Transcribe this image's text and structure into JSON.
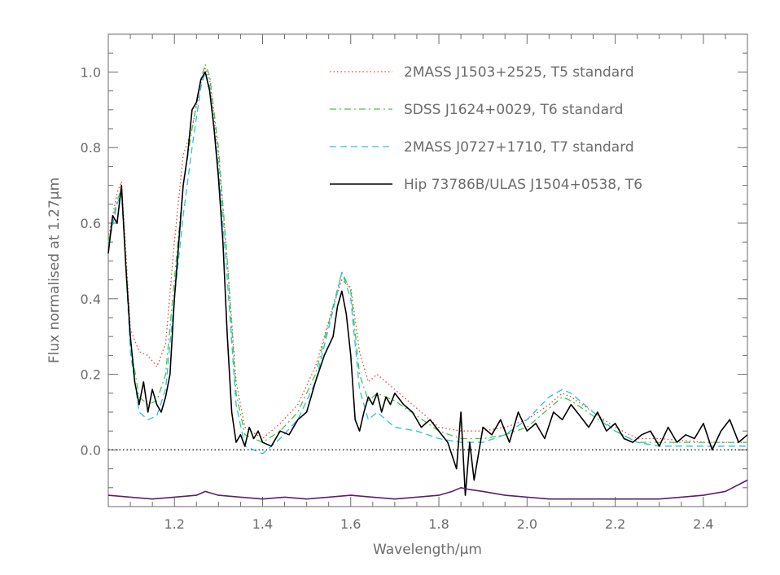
{
  "chart_data": {
    "type": "line",
    "xlabel": "Wavelength/μm",
    "ylabel": "Flux normalised at 1.27μm",
    "xlim": [
      1.05,
      2.5
    ],
    "ylim": [
      -0.15,
      1.1
    ],
    "x_ticks": [
      1.2,
      1.4,
      1.6,
      1.8,
      2.0,
      2.2,
      2.4
    ],
    "x_tick_labels": [
      "1.2",
      "1.4",
      "1.6",
      "1.8",
      "2.0",
      "2.2",
      "2.4"
    ],
    "y_ticks": [
      0.0,
      0.2,
      0.4,
      0.6,
      0.8,
      1.0
    ],
    "y_tick_labels": [
      "0.0",
      "0.2",
      "0.4",
      "0.6",
      "0.8",
      "1.0"
    ],
    "zero_line": 0.0,
    "legend_position": "top-right",
    "series": [
      {
        "name": "2MASS J1503+2525, T5 standard",
        "color": "#e8413a",
        "style": "dotted",
        "x": [
          1.05,
          1.07,
          1.08,
          1.09,
          1.1,
          1.12,
          1.14,
          1.16,
          1.18,
          1.2,
          1.22,
          1.24,
          1.26,
          1.27,
          1.28,
          1.3,
          1.32,
          1.34,
          1.36,
          1.4,
          1.44,
          1.48,
          1.52,
          1.56,
          1.58,
          1.6,
          1.62,
          1.64,
          1.66,
          1.7,
          1.75,
          1.8,
          1.85,
          1.9,
          1.95,
          2.0,
          2.05,
          2.08,
          2.1,
          2.15,
          2.2,
          2.25,
          2.3,
          2.4,
          2.5
        ],
        "y": [
          0.56,
          0.68,
          0.71,
          0.52,
          0.32,
          0.26,
          0.25,
          0.22,
          0.28,
          0.55,
          0.78,
          0.85,
          0.97,
          1.01,
          0.98,
          0.78,
          0.5,
          0.18,
          0.06,
          0.03,
          0.07,
          0.12,
          0.22,
          0.38,
          0.45,
          0.43,
          0.26,
          0.18,
          0.2,
          0.16,
          0.11,
          0.06,
          0.05,
          0.05,
          0.06,
          0.08,
          0.12,
          0.15,
          0.14,
          0.1,
          0.06,
          0.03,
          0.03,
          0.02,
          0.02
        ]
      },
      {
        "name": "SDSS J1624+0029, T6 standard",
        "color": "#3ec84a",
        "style": "dashdot",
        "x": [
          1.05,
          1.07,
          1.08,
          1.09,
          1.1,
          1.12,
          1.14,
          1.16,
          1.18,
          1.2,
          1.22,
          1.24,
          1.26,
          1.27,
          1.28,
          1.3,
          1.32,
          1.34,
          1.36,
          1.4,
          1.44,
          1.48,
          1.52,
          1.56,
          1.58,
          1.6,
          1.62,
          1.64,
          1.66,
          1.7,
          1.75,
          1.8,
          1.85,
          1.9,
          1.95,
          2.0,
          2.05,
          2.08,
          2.1,
          2.15,
          2.2,
          2.25,
          2.3,
          2.4,
          2.5
        ],
        "y": [
          0.55,
          0.66,
          0.69,
          0.5,
          0.28,
          0.14,
          0.12,
          0.13,
          0.2,
          0.45,
          0.7,
          0.85,
          0.98,
          1.02,
          0.99,
          0.8,
          0.5,
          0.15,
          0.04,
          0.02,
          0.05,
          0.1,
          0.2,
          0.38,
          0.47,
          0.42,
          0.2,
          0.13,
          0.15,
          0.13,
          0.09,
          0.05,
          0.03,
          0.03,
          0.04,
          0.06,
          0.11,
          0.14,
          0.13,
          0.09,
          0.05,
          0.02,
          0.02,
          0.02,
          0.02
        ]
      },
      {
        "name": "2MASS J0727+1710, T7 standard",
        "color": "#27c0e0",
        "style": "dashed",
        "x": [
          1.05,
          1.07,
          1.08,
          1.09,
          1.1,
          1.12,
          1.14,
          1.16,
          1.18,
          1.2,
          1.22,
          1.24,
          1.26,
          1.27,
          1.28,
          1.3,
          1.32,
          1.34,
          1.36,
          1.4,
          1.44,
          1.48,
          1.52,
          1.56,
          1.58,
          1.6,
          1.62,
          1.64,
          1.66,
          1.7,
          1.75,
          1.8,
          1.85,
          1.9,
          1.95,
          2.0,
          2.05,
          2.08,
          2.1,
          2.15,
          2.2,
          2.25,
          2.3,
          2.4,
          2.5
        ],
        "y": [
          0.54,
          0.65,
          0.68,
          0.48,
          0.26,
          0.1,
          0.08,
          0.09,
          0.16,
          0.4,
          0.62,
          0.8,
          0.96,
          1.0,
          0.96,
          0.75,
          0.45,
          0.12,
          0.01,
          -0.01,
          0.03,
          0.08,
          0.18,
          0.37,
          0.47,
          0.4,
          0.16,
          0.08,
          0.1,
          0.06,
          0.05,
          0.03,
          0.02,
          0.02,
          0.04,
          0.08,
          0.14,
          0.16,
          0.15,
          0.1,
          0.05,
          0.02,
          0.01,
          0.01,
          0.01
        ]
      },
      {
        "name": "Hip 73786B/ULAS J1504+0538, T6",
        "color": "#000000",
        "style": "solid",
        "x": [
          1.05,
          1.06,
          1.07,
          1.08,
          1.09,
          1.1,
          1.11,
          1.12,
          1.13,
          1.14,
          1.15,
          1.16,
          1.17,
          1.18,
          1.19,
          1.2,
          1.21,
          1.22,
          1.23,
          1.24,
          1.25,
          1.26,
          1.27,
          1.28,
          1.29,
          1.3,
          1.31,
          1.32,
          1.33,
          1.34,
          1.35,
          1.36,
          1.37,
          1.38,
          1.39,
          1.4,
          1.42,
          1.44,
          1.46,
          1.48,
          1.5,
          1.52,
          1.54,
          1.56,
          1.57,
          1.58,
          1.59,
          1.6,
          1.61,
          1.62,
          1.63,
          1.64,
          1.65,
          1.66,
          1.67,
          1.68,
          1.69,
          1.7,
          1.72,
          1.74,
          1.76,
          1.78,
          1.8,
          1.82,
          1.84,
          1.85,
          1.86,
          1.87,
          1.88,
          1.9,
          1.92,
          1.94,
          1.96,
          1.98,
          2.0,
          2.02,
          2.04,
          2.06,
          2.08,
          2.1,
          2.12,
          2.14,
          2.16,
          2.18,
          2.2,
          2.22,
          2.24,
          2.26,
          2.28,
          2.3,
          2.32,
          2.34,
          2.36,
          2.38,
          2.4,
          2.42,
          2.44,
          2.46,
          2.48,
          2.5
        ],
        "y": [
          0.52,
          0.62,
          0.6,
          0.7,
          0.48,
          0.3,
          0.18,
          0.12,
          0.18,
          0.1,
          0.16,
          0.12,
          0.1,
          0.14,
          0.2,
          0.4,
          0.55,
          0.7,
          0.78,
          0.9,
          0.92,
          0.98,
          1.0,
          0.95,
          0.85,
          0.72,
          0.55,
          0.3,
          0.1,
          0.02,
          0.04,
          0.01,
          0.06,
          0.03,
          0.05,
          0.02,
          0.01,
          0.05,
          0.04,
          0.08,
          0.1,
          0.18,
          0.25,
          0.3,
          0.38,
          0.42,
          0.36,
          0.25,
          0.08,
          0.05,
          0.1,
          0.14,
          0.12,
          0.15,
          0.1,
          0.14,
          0.12,
          0.15,
          0.12,
          0.1,
          0.06,
          0.08,
          0.05,
          0.02,
          -0.05,
          0.1,
          -0.12,
          0.02,
          -0.08,
          0.06,
          0.04,
          0.08,
          0.02,
          0.1,
          0.05,
          0.07,
          0.03,
          0.1,
          0.08,
          0.12,
          0.09,
          0.06,
          0.1,
          0.05,
          0.07,
          0.03,
          0.02,
          0.04,
          0.05,
          0.01,
          0.06,
          0.02,
          0.04,
          0.03,
          0.07,
          0.0,
          0.05,
          0.08,
          0.02,
          0.04
        ]
      },
      {
        "name": "",
        "color": "#5b1f6b",
        "style": "solid",
        "x": [
          1.05,
          1.1,
          1.15,
          1.2,
          1.25,
          1.27,
          1.3,
          1.35,
          1.4,
          1.45,
          1.5,
          1.55,
          1.6,
          1.65,
          1.7,
          1.75,
          1.8,
          1.83,
          1.85,
          1.87,
          1.9,
          1.95,
          2.0,
          2.05,
          2.1,
          2.15,
          2.2,
          2.25,
          2.3,
          2.35,
          2.4,
          2.45,
          2.5
        ],
        "y": [
          -0.12,
          -0.125,
          -0.13,
          -0.125,
          -0.12,
          -0.11,
          -0.12,
          -0.125,
          -0.13,
          -0.125,
          -0.13,
          -0.125,
          -0.12,
          -0.125,
          -0.13,
          -0.125,
          -0.12,
          -0.11,
          -0.1,
          -0.105,
          -0.11,
          -0.12,
          -0.125,
          -0.13,
          -0.13,
          -0.13,
          -0.13,
          -0.13,
          -0.13,
          -0.125,
          -0.12,
          -0.11,
          -0.08
        ]
      }
    ]
  }
}
